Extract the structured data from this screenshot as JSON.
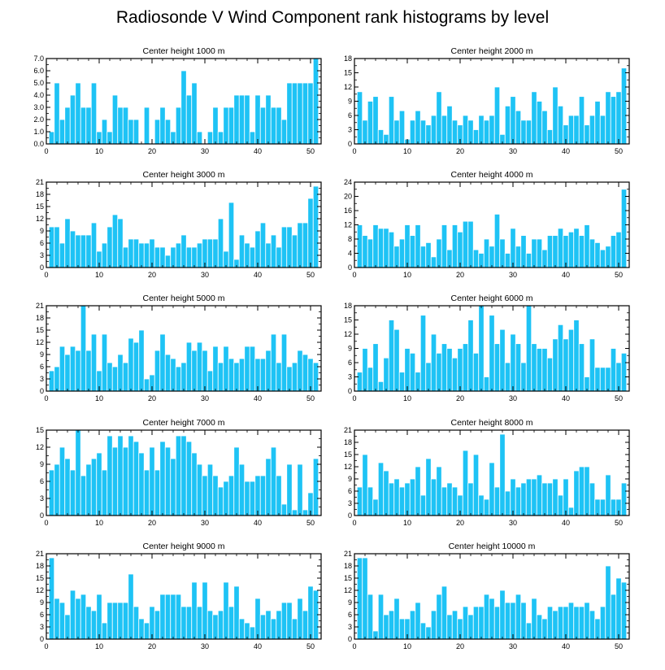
{
  "title": "Radiosonde V Wind Component rank histograms by level",
  "colors": {
    "bar": "#1ec3f5",
    "bar_edge": "#ffffff",
    "axis": "#000000"
  },
  "chart_data": [
    {
      "type": "bar",
      "title": "Center height 1000 m",
      "x": [
        1,
        2,
        3,
        4,
        5,
        6,
        7,
        8,
        9,
        10,
        11,
        12,
        13,
        14,
        15,
        16,
        17,
        18,
        19,
        20,
        21,
        22,
        23,
        24,
        25,
        26,
        27,
        28,
        29,
        30,
        31,
        32,
        33,
        34,
        35,
        36,
        37,
        38,
        39,
        40,
        41,
        42,
        43,
        44,
        45,
        46,
        47,
        48,
        49,
        50,
        51
      ],
      "values": [
        1,
        5,
        2,
        3,
        4,
        5,
        3,
        3,
        5,
        1,
        2,
        1,
        4,
        3,
        3,
        2,
        2,
        0,
        3,
        0,
        2,
        3,
        2,
        1,
        3,
        6,
        4,
        5,
        1,
        0,
        1,
        3,
        1,
        3,
        3,
        4,
        4,
        4,
        1,
        4,
        3,
        4,
        3,
        3,
        2,
        5,
        5,
        5,
        5,
        5,
        7
      ],
      "xlim": [
        0,
        52
      ],
      "ylim": [
        0,
        7
      ],
      "xticks": [
        0,
        10,
        20,
        30,
        40,
        50
      ],
      "yticks": [
        0,
        1,
        2,
        3,
        4,
        5,
        6,
        7
      ],
      "yticklabels": [
        "0.0",
        "1.0",
        "2.0",
        "3.0",
        "4.0",
        "5.0",
        "6.0",
        "7.0"
      ]
    },
    {
      "type": "bar",
      "title": "Center height 2000 m",
      "x": [
        1,
        2,
        3,
        4,
        5,
        6,
        7,
        8,
        9,
        10,
        11,
        12,
        13,
        14,
        15,
        16,
        17,
        18,
        19,
        20,
        21,
        22,
        23,
        24,
        25,
        26,
        27,
        28,
        29,
        30,
        31,
        32,
        33,
        34,
        35,
        36,
        37,
        38,
        39,
        40,
        41,
        42,
        43,
        44,
        45,
        46,
        47,
        48,
        49,
        50,
        51
      ],
      "values": [
        11,
        5,
        9,
        10,
        3,
        2,
        10,
        5,
        7,
        1,
        5,
        7,
        5,
        4,
        6,
        11,
        6,
        8,
        5,
        4,
        6,
        5,
        3,
        6,
        5,
        6,
        12,
        2,
        8,
        10,
        7,
        5,
        5,
        11,
        9,
        7,
        3,
        12,
        8,
        4,
        6,
        6,
        10,
        4,
        6,
        9,
        6,
        11,
        10,
        11,
        16
      ],
      "xlim": [
        0,
        52
      ],
      "ylim": [
        0,
        18
      ],
      "xticks": [
        0,
        10,
        20,
        30,
        40,
        50
      ],
      "yticks": [
        0,
        3,
        6,
        9,
        12,
        15,
        18
      ],
      "yticklabels": [
        "0",
        "3",
        "6",
        "9",
        "12",
        "15",
        "18"
      ]
    },
    {
      "type": "bar",
      "title": "Center height 3000 m",
      "x": [
        1,
        2,
        3,
        4,
        5,
        6,
        7,
        8,
        9,
        10,
        11,
        12,
        13,
        14,
        15,
        16,
        17,
        18,
        19,
        20,
        21,
        22,
        23,
        24,
        25,
        26,
        27,
        28,
        29,
        30,
        31,
        32,
        33,
        34,
        35,
        36,
        37,
        38,
        39,
        40,
        41,
        42,
        43,
        44,
        45,
        46,
        47,
        48,
        49,
        50,
        51
      ],
      "values": [
        10,
        10,
        6,
        12,
        9,
        8,
        8,
        8,
        11,
        4,
        6,
        10,
        13,
        12,
        5,
        7,
        7,
        6,
        6,
        7,
        5,
        5,
        3,
        5,
        6,
        8,
        5,
        5,
        6,
        7,
        7,
        7,
        12,
        4,
        16,
        2,
        8,
        6,
        5,
        9,
        11,
        6,
        8,
        5,
        10,
        10,
        8,
        11,
        11,
        17,
        20
      ],
      "xlim": [
        0,
        52
      ],
      "ylim": [
        0,
        21
      ],
      "xticks": [
        0,
        10,
        20,
        30,
        40,
        50
      ],
      "yticks": [
        0,
        3,
        6,
        9,
        12,
        15,
        18,
        21
      ],
      "yticklabels": [
        "0",
        "3",
        "6",
        "9",
        "12",
        "15",
        "18",
        "21"
      ]
    },
    {
      "type": "bar",
      "title": "Center height 4000 m",
      "x": [
        1,
        2,
        3,
        4,
        5,
        6,
        7,
        8,
        9,
        10,
        11,
        12,
        13,
        14,
        15,
        16,
        17,
        18,
        19,
        20,
        21,
        22,
        23,
        24,
        25,
        26,
        27,
        28,
        29,
        30,
        31,
        32,
        33,
        34,
        35,
        36,
        37,
        38,
        39,
        40,
        41,
        42,
        43,
        44,
        45,
        46,
        47,
        48,
        49,
        50,
        51
      ],
      "values": [
        12,
        9,
        8,
        12,
        11,
        11,
        10,
        6,
        8,
        12,
        9,
        12,
        6,
        7,
        3,
        8,
        12,
        5,
        12,
        10,
        13,
        13,
        5,
        4,
        8,
        6,
        15,
        8,
        4,
        11,
        6,
        9,
        4,
        8,
        8,
        5,
        9,
        9,
        11,
        9,
        10,
        11,
        9,
        12,
        8,
        7,
        5,
        6,
        9,
        10,
        22
      ],
      "xlim": [
        0,
        52
      ],
      "ylim": [
        0,
        24
      ],
      "xticks": [
        0,
        10,
        20,
        30,
        40,
        50
      ],
      "yticks": [
        0,
        4,
        8,
        12,
        16,
        20,
        24
      ],
      "yticklabels": [
        "0",
        "4",
        "8",
        "12",
        "16",
        "20",
        "24"
      ]
    },
    {
      "type": "bar",
      "title": "Center height 5000 m",
      "x": [
        1,
        2,
        3,
        4,
        5,
        6,
        7,
        8,
        9,
        10,
        11,
        12,
        13,
        14,
        15,
        16,
        17,
        18,
        19,
        20,
        21,
        22,
        23,
        24,
        25,
        26,
        27,
        28,
        29,
        30,
        31,
        32,
        33,
        34,
        35,
        36,
        37,
        38,
        39,
        40,
        41,
        42,
        43,
        44,
        45,
        46,
        47,
        48,
        49,
        50,
        51
      ],
      "values": [
        5,
        6,
        11,
        9,
        11,
        10,
        21,
        10,
        14,
        5,
        14,
        7,
        6,
        9,
        7,
        13,
        12,
        15,
        3,
        4,
        10,
        14,
        9,
        8,
        6,
        7,
        12,
        10,
        12,
        10,
        5,
        11,
        7,
        11,
        8,
        7,
        8,
        11,
        11,
        8,
        8,
        10,
        14,
        7,
        14,
        6,
        7,
        10,
        9,
        8,
        7
      ],
      "xlim": [
        0,
        52
      ],
      "ylim": [
        0,
        21
      ],
      "xticks": [
        0,
        10,
        20,
        30,
        40,
        50
      ],
      "yticks": [
        0,
        3,
        6,
        9,
        12,
        15,
        18,
        21
      ],
      "yticklabels": [
        "0",
        "3",
        "6",
        "9",
        "12",
        "15",
        "18",
        "21"
      ]
    },
    {
      "type": "bar",
      "title": "Center height 6000 m",
      "x": [
        1,
        2,
        3,
        4,
        5,
        6,
        7,
        8,
        9,
        10,
        11,
        12,
        13,
        14,
        15,
        16,
        17,
        18,
        19,
        20,
        21,
        22,
        23,
        24,
        25,
        26,
        27,
        28,
        29,
        30,
        31,
        32,
        33,
        34,
        35,
        36,
        37,
        38,
        39,
        40,
        41,
        42,
        43,
        44,
        45,
        46,
        47,
        48,
        49,
        50,
        51
      ],
      "values": [
        4,
        9,
        5,
        10,
        2,
        7,
        15,
        13,
        4,
        9,
        8,
        4,
        16,
        6,
        12,
        8,
        10,
        9,
        7,
        9,
        10,
        15,
        8,
        18,
        3,
        16,
        10,
        13,
        6,
        12,
        10,
        6,
        18,
        10,
        9,
        9,
        7,
        11,
        14,
        11,
        13,
        15,
        10,
        3,
        11,
        5,
        5,
        5,
        9,
        6,
        8
      ],
      "xlim": [
        0,
        52
      ],
      "ylim": [
        0,
        18
      ],
      "xticks": [
        0,
        10,
        20,
        30,
        40,
        50
      ],
      "yticks": [
        0,
        3,
        6,
        9,
        12,
        15,
        18
      ],
      "yticklabels": [
        "0",
        "3",
        "6",
        "9",
        "12",
        "15",
        "18"
      ]
    },
    {
      "type": "bar",
      "title": "Center height 7000 m",
      "x": [
        1,
        2,
        3,
        4,
        5,
        6,
        7,
        8,
        9,
        10,
        11,
        12,
        13,
        14,
        15,
        16,
        17,
        18,
        19,
        20,
        21,
        22,
        23,
        24,
        25,
        26,
        27,
        28,
        29,
        30,
        31,
        32,
        33,
        34,
        35,
        36,
        37,
        38,
        39,
        40,
        41,
        42,
        43,
        44,
        45,
        46,
        47,
        48,
        49,
        50,
        51
      ],
      "values": [
        8,
        9,
        12,
        10,
        8,
        15,
        7,
        9,
        10,
        11,
        8,
        14,
        12,
        14,
        12,
        14,
        13,
        11,
        8,
        12,
        8,
        13,
        12,
        10,
        14,
        14,
        13,
        11,
        9,
        7,
        9,
        7,
        5,
        6,
        7,
        12,
        9,
        6,
        6,
        7,
        7,
        10,
        12,
        7,
        2,
        9,
        1,
        9,
        1,
        4,
        10
      ],
      "xlim": [
        0,
        52
      ],
      "ylim": [
        0,
        15
      ],
      "xticks": [
        0,
        10,
        20,
        30,
        40,
        50
      ],
      "yticks": [
        0,
        3,
        6,
        9,
        12,
        15
      ],
      "yticklabels": [
        "0",
        "3",
        "6",
        "9",
        "12",
        "15"
      ]
    },
    {
      "type": "bar",
      "title": "Center height 8000 m",
      "x": [
        1,
        2,
        3,
        4,
        5,
        6,
        7,
        8,
        9,
        10,
        11,
        12,
        13,
        14,
        15,
        16,
        17,
        18,
        19,
        20,
        21,
        22,
        23,
        24,
        25,
        26,
        27,
        28,
        29,
        30,
        31,
        32,
        33,
        34,
        35,
        36,
        37,
        38,
        39,
        40,
        41,
        42,
        43,
        44,
        45,
        46,
        47,
        48,
        49,
        50,
        51
      ],
      "values": [
        7,
        15,
        7,
        4,
        13,
        11,
        8,
        9,
        7,
        8,
        9,
        12,
        5,
        14,
        9,
        12,
        7,
        8,
        7,
        5,
        16,
        8,
        15,
        5,
        4,
        13,
        7,
        20,
        6,
        9,
        7,
        8,
        9,
        9,
        10,
        8,
        8,
        9,
        5,
        9,
        2,
        11,
        12,
        12,
        8,
        4,
        4,
        10,
        4,
        4,
        8
      ],
      "xlim": [
        0,
        52
      ],
      "ylim": [
        0,
        21
      ],
      "xticks": [
        0,
        10,
        20,
        30,
        40,
        50
      ],
      "yticks": [
        0,
        3,
        6,
        9,
        12,
        15,
        18,
        21
      ],
      "yticklabels": [
        "0",
        "3",
        "6",
        "9",
        "12",
        "15",
        "18",
        "21"
      ]
    },
    {
      "type": "bar",
      "title": "Center height 9000 m",
      "x": [
        1,
        2,
        3,
        4,
        5,
        6,
        7,
        8,
        9,
        10,
        11,
        12,
        13,
        14,
        15,
        16,
        17,
        18,
        19,
        20,
        21,
        22,
        23,
        24,
        25,
        26,
        27,
        28,
        29,
        30,
        31,
        32,
        33,
        34,
        35,
        36,
        37,
        38,
        39,
        40,
        41,
        42,
        43,
        44,
        45,
        46,
        47,
        48,
        49,
        50,
        51
      ],
      "values": [
        20,
        10,
        9,
        6,
        12,
        10,
        11,
        8,
        7,
        11,
        4,
        9,
        9,
        9,
        9,
        16,
        8,
        5,
        4,
        8,
        7,
        11,
        11,
        11,
        11,
        8,
        8,
        14,
        8,
        14,
        7,
        6,
        7,
        14,
        8,
        13,
        5,
        4,
        3,
        10,
        6,
        7,
        5,
        7,
        9,
        9,
        5,
        10,
        7,
        13,
        12
      ],
      "xlim": [
        0,
        52
      ],
      "ylim": [
        0,
        21
      ],
      "xticks": [
        0,
        10,
        20,
        30,
        40,
        50
      ],
      "yticks": [
        0,
        3,
        6,
        9,
        12,
        15,
        18,
        21
      ],
      "yticklabels": [
        "0",
        "3",
        "6",
        "9",
        "12",
        "15",
        "18",
        "21"
      ]
    },
    {
      "type": "bar",
      "title": "Center height 10000 m",
      "x": [
        1,
        2,
        3,
        4,
        5,
        6,
        7,
        8,
        9,
        10,
        11,
        12,
        13,
        14,
        15,
        16,
        17,
        18,
        19,
        20,
        21,
        22,
        23,
        24,
        25,
        26,
        27,
        28,
        29,
        30,
        31,
        32,
        33,
        34,
        35,
        36,
        37,
        38,
        39,
        40,
        41,
        42,
        43,
        44,
        45,
        46,
        47,
        48,
        49,
        50,
        51
      ],
      "values": [
        20,
        20,
        11,
        2,
        11,
        6,
        7,
        10,
        5,
        5,
        7,
        9,
        4,
        3,
        7,
        11,
        13,
        6,
        7,
        5,
        8,
        6,
        8,
        8,
        11,
        10,
        8,
        12,
        9,
        9,
        11,
        9,
        4,
        10,
        6,
        5,
        8,
        7,
        8,
        8,
        9,
        8,
        8,
        9,
        7,
        5,
        8,
        18,
        11,
        15,
        14
      ],
      "xlim": [
        0,
        52
      ],
      "ylim": [
        0,
        21
      ],
      "xticks": [
        0,
        10,
        20,
        30,
        40,
        50
      ],
      "yticks": [
        0,
        3,
        6,
        9,
        12,
        15,
        18,
        21
      ],
      "yticklabels": [
        "0",
        "3",
        "6",
        "9",
        "12",
        "15",
        "18",
        "21"
      ]
    }
  ]
}
